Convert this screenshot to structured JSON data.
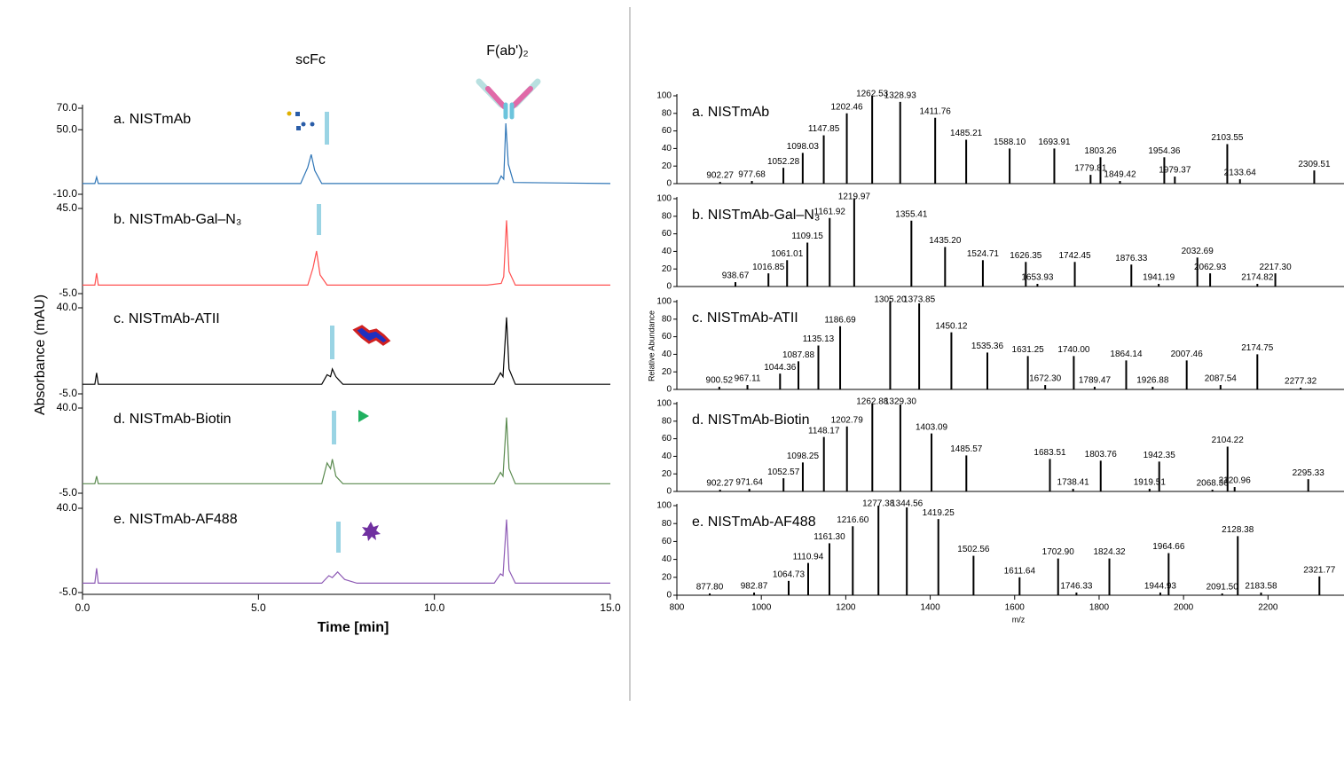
{
  "chart_data": [
    {
      "type": "line",
      "x_label": "Time [min]",
      "y_label": "Absorbance (mAU)",
      "xlim": [
        0,
        15
      ],
      "xticks": [
        {
          "value": 0,
          "label": "0.0"
        },
        {
          "value": 5,
          "label": "5.0"
        },
        {
          "value": 10,
          "label": "10.0"
        },
        {
          "value": 15,
          "label": "15.0"
        }
      ],
      "annotations": [
        "scFc",
        "F(ab')₂"
      ],
      "series": [
        {
          "name": "a. NISTmAb",
          "color": "#2e75b6",
          "label_color": "#1f4e79",
          "ylim": [
            -10,
            70
          ],
          "yticks": [
            {
              "value": 70,
              "label": "70.0"
            },
            {
              "value": 50,
              "label": "50.0"
            },
            {
              "value": -10,
              "label": "-10.0"
            }
          ],
          "x": [
            0,
            0.35,
            0.4,
            0.45,
            6.2,
            6.4,
            6.5,
            6.6,
            6.8,
            11.8,
            11.9,
            11.97,
            12.03,
            12.1,
            12.25,
            15
          ],
          "values": [
            0,
            0,
            6,
            0,
            0,
            15,
            27,
            12,
            0,
            0,
            7,
            4,
            56,
            18,
            1,
            0
          ]
        },
        {
          "name": "b. NISTmAb-Gal–N₃",
          "color": "#ff5050",
          "label_color": "#c00000",
          "ylim": [
            -5,
            45
          ],
          "yticks": [
            {
              "value": 45,
              "label": "45.0"
            },
            {
              "value": -5,
              "label": "-5.0"
            }
          ],
          "x": [
            0,
            0.35,
            0.4,
            0.45,
            6.4,
            6.55,
            6.65,
            6.75,
            6.95,
            11.5,
            11.9,
            11.97,
            12.05,
            12.12,
            12.3,
            15
          ],
          "values": [
            0,
            0,
            7,
            0,
            0,
            10,
            20,
            6,
            0,
            0,
            1,
            5,
            38,
            8,
            0,
            0
          ]
        },
        {
          "name": "c. NISTmAb-ATII",
          "color": "#000000",
          "label_color": "#000000",
          "ylim": [
            -5,
            40
          ],
          "yticks": [
            {
              "value": 40,
              "label": "40.0"
            },
            {
              "value": -5,
              "label": "-5.0"
            }
          ],
          "x": [
            0,
            0.35,
            0.4,
            0.45,
            6.8,
            6.95,
            7.05,
            7.1,
            7.2,
            7.4,
            11.7,
            11.88,
            11.95,
            12.05,
            12.12,
            12.3,
            15
          ],
          "values": [
            0,
            0,
            6,
            0,
            0,
            5,
            4,
            8,
            4,
            0,
            0,
            6,
            4,
            35,
            8,
            0,
            0
          ]
        },
        {
          "name": "d. NISTmAb-Biotin",
          "color": "#5a8a4f",
          "label_color": "#375623",
          "ylim": [
            -5,
            40
          ],
          "yticks": [
            {
              "value": 40,
              "label": "40.0"
            },
            {
              "value": -5,
              "label": "-5.0"
            }
          ],
          "x": [
            0,
            0.35,
            0.4,
            0.45,
            6.8,
            6.95,
            7.05,
            7.1,
            7.2,
            7.4,
            11.7,
            11.88,
            11.95,
            12.05,
            12.12,
            12.3,
            15
          ],
          "values": [
            0,
            0,
            4,
            0,
            0,
            11,
            8,
            13,
            4,
            0,
            0,
            6,
            4,
            35,
            8,
            0,
            0
          ]
        },
        {
          "name": "e. NISTmAb-AF488",
          "color": "#8e5bb5",
          "label_color": "#7030a0",
          "ylim": [
            -5,
            40
          ],
          "yticks": [
            {
              "value": 40,
              "label": "40.0"
            },
            {
              "value": -5,
              "label": "-5.0"
            }
          ],
          "x": [
            0,
            0.35,
            0.4,
            0.45,
            6.8,
            7.0,
            7.1,
            7.25,
            7.45,
            7.8,
            11.7,
            11.88,
            11.95,
            12.05,
            12.12,
            12.3,
            15
          ],
          "values": [
            0,
            0,
            8,
            0,
            0,
            4,
            3,
            6,
            2,
            0,
            0,
            5,
            4,
            34,
            7,
            0,
            0
          ]
        }
      ]
    },
    {
      "type": "spectrum",
      "x_label": "m/z",
      "y_label": "Relative Abundance",
      "xlim": [
        800,
        2380
      ],
      "xticks": [
        800,
        1000,
        1200,
        1400,
        1600,
        1800,
        2000,
        2200
      ],
      "ylim": [
        0,
        100
      ],
      "yticks": [
        0,
        20,
        40,
        60,
        80,
        100
      ],
      "series": [
        {
          "name": "a. NISTmAb",
          "color": "#1f4e79",
          "x": [
            {
              "value": 902.27,
              "label": "902.27"
            },
            {
              "value": 977.68,
              "label": "977.68"
            },
            {
              "value": 1052.28,
              "label": "1052.28"
            },
            {
              "value": 1098.03,
              "label": "1098.03"
            },
            {
              "value": 1147.85,
              "label": "1147.85"
            },
            {
              "value": 1202.46,
              "label": "1202.46"
            },
            {
              "value": 1262.53,
              "label": "1262.53"
            },
            {
              "value": 1328.93,
              "label": "1328.93"
            },
            {
              "value": 1411.76,
              "label": "1411.76"
            },
            {
              "value": 1485.21,
              "label": "1485.21"
            },
            {
              "value": 1588.1,
              "label": "1588.10"
            },
            {
              "value": 1693.91,
              "label": "1693.91"
            },
            {
              "value": 1779.81,
              "label": "1779.81"
            },
            {
              "value": 1803.26,
              "label": "1803.26"
            },
            {
              "value": 1849.42,
              "label": "1849.42"
            },
            {
              "value": 1954.36,
              "label": "1954.36"
            },
            {
              "value": 1979.37,
              "label": "1979.37"
            },
            {
              "value": 2103.55,
              "label": "2103.55"
            },
            {
              "value": 2133.64,
              "label": "2133.64"
            },
            {
              "value": 2309.51,
              "label": "2309.51"
            }
          ],
          "values": [
            2,
            3,
            18,
            35,
            55,
            80,
            100,
            93,
            75,
            50,
            40,
            40,
            10,
            30,
            3,
            30,
            8,
            45,
            5,
            15
          ]
        },
        {
          "name": "b. NISTmAb-Gal–N₃",
          "color": "#c00000",
          "x": [
            {
              "value": 938.67,
              "label": "938.67"
            },
            {
              "value": 1016.85,
              "label": "1016.85"
            },
            {
              "value": 1061.01,
              "label": "1061.01"
            },
            {
              "value": 1109.15,
              "label": "1109.15"
            },
            {
              "value": 1161.92,
              "label": "1161.92"
            },
            {
              "value": 1219.97,
              "label": "1219.97"
            },
            {
              "value": 1355.41,
              "label": "1355.41"
            },
            {
              "value": 1435.2,
              "label": "1435.20"
            },
            {
              "value": 1524.71,
              "label": "1524.71"
            },
            {
              "value": 1626.35,
              "label": "1626.35"
            },
            {
              "value": 1653.93,
              "label": "1653.93"
            },
            {
              "value": 1742.45,
              "label": "1742.45"
            },
            {
              "value": 1876.33,
              "label": "1876.33"
            },
            {
              "value": 1941.19,
              "label": "1941.19"
            },
            {
              "value": 2032.69,
              "label": "2032.69"
            },
            {
              "value": 2062.93,
              "label": "2062.93"
            },
            {
              "value": 2174.82,
              "label": "2174.82"
            },
            {
              "value": 2217.3,
              "label": "2217.30"
            }
          ],
          "values": [
            5,
            15,
            30,
            50,
            78,
            100,
            75,
            45,
            30,
            28,
            3,
            28,
            25,
            3,
            33,
            15,
            3,
            15
          ]
        },
        {
          "name": "c. NISTmAb-ATII",
          "color": "#000000",
          "x": [
            {
              "value": 900.52,
              "label": "900.52"
            },
            {
              "value": 967.11,
              "label": "967.11"
            },
            {
              "value": 1044.36,
              "label": "1044.36"
            },
            {
              "value": 1087.88,
              "label": "1087.88"
            },
            {
              "value": 1135.13,
              "label": "1135.13"
            },
            {
              "value": 1186.69,
              "label": "1186.69"
            },
            {
              "value": 1305.2,
              "label": "1305.20"
            },
            {
              "value": 1373.85,
              "label": "1373.85"
            },
            {
              "value": 1450.12,
              "label": "1450.12"
            },
            {
              "value": 1535.36,
              "label": "1535.36"
            },
            {
              "value": 1631.25,
              "label": "1631.25"
            },
            {
              "value": 1672.3,
              "label": "1672.30"
            },
            {
              "value": 1740.0,
              "label": "1740.00"
            },
            {
              "value": 1789.47,
              "label": "1789.47"
            },
            {
              "value": 1864.14,
              "label": "1864.14"
            },
            {
              "value": 1926.88,
              "label": "1926.88"
            },
            {
              "value": 2007.46,
              "label": "2007.46"
            },
            {
              "value": 2087.54,
              "label": "2087.54"
            },
            {
              "value": 2174.75,
              "label": "2174.75"
            },
            {
              "value": 2277.32,
              "label": "2277.32"
            }
          ],
          "values": [
            3,
            5,
            18,
            32,
            50,
            72,
            100,
            98,
            65,
            42,
            38,
            5,
            38,
            3,
            33,
            3,
            33,
            5,
            40,
            2
          ]
        },
        {
          "name": "d. NISTmAb-Biotin",
          "color": "#375623",
          "x": [
            {
              "value": 902.27,
              "label": "902.27"
            },
            {
              "value": 971.64,
              "label": "971.64"
            },
            {
              "value": 1052.57,
              "label": "1052.57"
            },
            {
              "value": 1098.25,
              "label": "1098.25"
            },
            {
              "value": 1148.17,
              "label": "1148.17"
            },
            {
              "value": 1202.79,
              "label": "1202.79"
            },
            {
              "value": 1262.88,
              "label": "1262.88"
            },
            {
              "value": 1329.3,
              "label": "1329.30"
            },
            {
              "value": 1403.09,
              "label": "1403.09"
            },
            {
              "value": 1485.57,
              "label": "1485.57"
            },
            {
              "value": 1683.51,
              "label": "1683.51"
            },
            {
              "value": 1738.41,
              "label": "1738.41"
            },
            {
              "value": 1803.76,
              "label": "1803.76"
            },
            {
              "value": 1919.51,
              "label": "1919.51"
            },
            {
              "value": 1942.35,
              "label": "1942.35"
            },
            {
              "value": 2068.36,
              "label": "2068.36"
            },
            {
              "value": 2104.22,
              "label": "2104.22"
            },
            {
              "value": 2120.96,
              "label": "2120.96"
            },
            {
              "value": 2295.33,
              "label": "2295.33"
            }
          ],
          "values": [
            2,
            3,
            15,
            33,
            62,
            74,
            100,
            99,
            66,
            41,
            37,
            3,
            35,
            3,
            34,
            2,
            51,
            5,
            14
          ]
        },
        {
          "name": "e. NISTmAb-AF488",
          "color": "#7030a0",
          "x": [
            {
              "value": 877.8,
              "label": "877.80"
            },
            {
              "value": 982.87,
              "label": "982.87"
            },
            {
              "value": 1064.73,
              "label": "1064.73"
            },
            {
              "value": 1110.94,
              "label": "1110.94"
            },
            {
              "value": 1161.3,
              "label": "1161.30"
            },
            {
              "value": 1216.6,
              "label": "1216.60"
            },
            {
              "value": 1277.38,
              "label": "1277.38"
            },
            {
              "value": 1344.56,
              "label": "1344.56"
            },
            {
              "value": 1419.25,
              "label": "1419.25"
            },
            {
              "value": 1502.56,
              "label": "1502.56"
            },
            {
              "value": 1611.64,
              "label": "1611.64"
            },
            {
              "value": 1702.9,
              "label": "1702.90"
            },
            {
              "value": 1746.33,
              "label": "1746.33"
            },
            {
              "value": 1824.32,
              "label": "1824.32"
            },
            {
              "value": 1944.93,
              "label": "1944.93"
            },
            {
              "value": 1964.66,
              "label": "1964.66"
            },
            {
              "value": 2091.5,
              "label": "2091.50"
            },
            {
              "value": 2128.38,
              "label": "2128.38"
            },
            {
              "value": 2183.58,
              "label": "2183.58"
            },
            {
              "value": 2321.77,
              "label": "2321.77"
            }
          ],
          "values": [
            2,
            3,
            16,
            36,
            58,
            77,
            100,
            98,
            85,
            44,
            20,
            41,
            3,
            41,
            3,
            47,
            2,
            66,
            3,
            21
          ]
        }
      ]
    }
  ]
}
